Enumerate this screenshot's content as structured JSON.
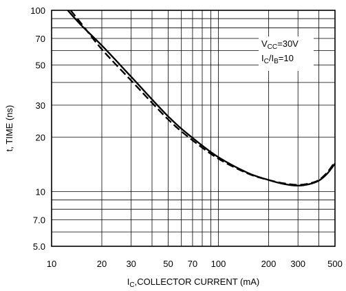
{
  "chart_data": {
    "type": "line",
    "xscale": "log",
    "yscale": "log",
    "xlim": [
      10,
      500
    ],
    "ylim": [
      5,
      100
    ],
    "grid": true,
    "xlabel": {
      "main": "I",
      "sub": "C",
      "rest": ",COLLECTOR CURRENT (mA)"
    },
    "ylabel": "t, TIME (ns)",
    "xticks": [
      {
        "v": 10,
        "label": "10"
      },
      {
        "v": 20,
        "label": "20"
      },
      {
        "v": 30,
        "label": "30"
      },
      {
        "v": 50,
        "label": "50"
      },
      {
        "v": 70,
        "label": "70"
      },
      {
        "v": 100,
        "label": "100"
      },
      {
        "v": 200,
        "label": "200"
      },
      {
        "v": 300,
        "label": "300"
      },
      {
        "v": 500,
        "label": "500"
      }
    ],
    "yticks": [
      {
        "v": 5,
        "label": "5.0"
      },
      {
        "v": 7,
        "label": "7.0"
      },
      {
        "v": 10,
        "label": "10"
      },
      {
        "v": 20,
        "label": "20"
      },
      {
        "v": 30,
        "label": "30"
      },
      {
        "v": 50,
        "label": "50"
      },
      {
        "v": 70,
        "label": "70"
      },
      {
        "v": 100,
        "label": "100"
      }
    ],
    "xgrid": [
      10,
      20,
      30,
      40,
      50,
      60,
      70,
      80,
      90,
      100,
      200,
      300,
      400,
      500
    ],
    "ygrid": [
      5,
      6,
      7,
      8,
      9,
      10,
      20,
      30,
      40,
      50,
      60,
      70,
      80,
      90,
      100
    ],
    "annotation": [
      {
        "main": "V",
        "sub": "CC",
        "rest": "=30V"
      },
      {
        "main": "I",
        "sub": "C",
        "rest": "/I",
        "sub2": "B",
        "rest2": "=10"
      }
    ],
    "series": [
      {
        "style": "solid",
        "x": [
          12.5,
          15,
          20,
          30,
          50,
          70,
          100,
          150,
          200,
          250,
          300,
          350,
          400,
          450,
          500
        ],
        "y": [
          100,
          83,
          64,
          43,
          26,
          19.8,
          15.5,
          12.7,
          11.6,
          11.0,
          10.8,
          11.0,
          11.5,
          12.6,
          14.3
        ]
      },
      {
        "style": "dashed",
        "x": [
          13,
          15,
          20,
          30,
          50,
          70,
          100,
          150,
          200,
          250,
          300,
          350,
          400,
          450,
          500
        ],
        "y": [
          100,
          85,
          61,
          41,
          25,
          19.2,
          15.2,
          12.6,
          11.6,
          11.1,
          10.9,
          11.1,
          11.6,
          12.8,
          14.6
        ]
      }
    ]
  }
}
